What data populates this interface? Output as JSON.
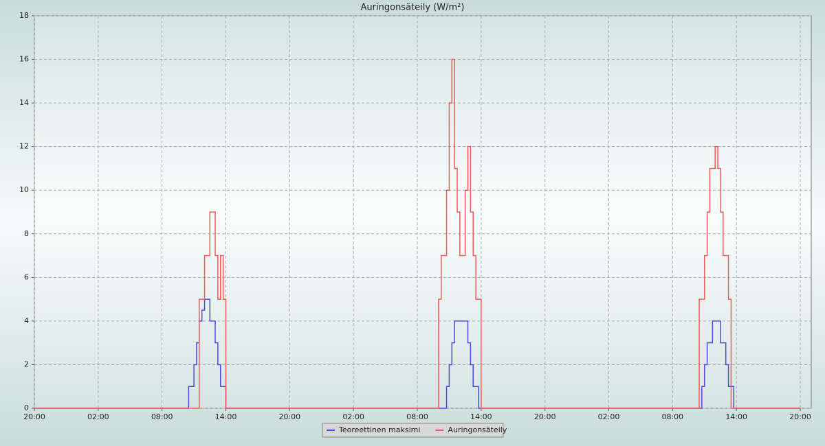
{
  "chart_data": {
    "type": "step",
    "title": "Auringonsäteily (W/m²)",
    "x": [
      0,
      14,
      14.25,
      14.5,
      14.75,
      15,
      15.25,
      15.5,
      15.75,
      16,
      16.25,
      16.5,
      16.75,
      17,
      17.25,
      17.5,
      17.75,
      18,
      18.25,
      37.75,
      38,
      38.25,
      38.5,
      38.75,
      39,
      39.25,
      39.5,
      39.75,
      40,
      40.25,
      40.5,
      40.75,
      41,
      41.25,
      41.5,
      41.75,
      42,
      42.25,
      62.25,
      62.5,
      62.75,
      63,
      63.25,
      63.5,
      63.75,
      64,
      64.25,
      64.5,
      64.75,
      65,
      65.25,
      65.5,
      65.75,
      66,
      72
    ],
    "series": [
      {
        "name": "Teoreettinen maksimi",
        "color": "#4b4bdc",
        "values": [
          0,
          0,
          0,
          1,
          1,
          2,
          3,
          4,
          4.5,
          5,
          5,
          4,
          4,
          3,
          2,
          1,
          1,
          0,
          0,
          0,
          0,
          0,
          0,
          1,
          2,
          3,
          4,
          4,
          4,
          4,
          4,
          3,
          2,
          1,
          1,
          0,
          0,
          0,
          0,
          0,
          1,
          2,
          3,
          3,
          4,
          4,
          4,
          3,
          3,
          2,
          1,
          1,
          0,
          0,
          0
        ]
      },
      {
        "name": "Auringonsäteily",
        "color": "#f05a5a",
        "values": [
          0,
          0,
          0,
          0,
          0,
          0,
          0,
          5,
          5,
          7,
          7,
          9,
          9,
          7,
          5,
          7,
          5,
          0,
          0,
          0,
          5,
          7,
          7,
          10,
          14,
          16,
          11,
          9,
          7,
          7,
          10,
          12,
          9,
          7,
          5,
          5,
          0,
          0,
          0,
          5,
          5,
          7,
          9,
          11,
          11,
          12,
          11,
          9,
          7,
          7,
          5,
          0,
          0,
          0,
          0
        ]
      }
    ],
    "xlim": [
      0,
      72
    ],
    "xticks": [
      {
        "value": 0,
        "label": "20:00"
      },
      {
        "value": 6,
        "label": "02:00"
      },
      {
        "value": 12,
        "label": "08:00"
      },
      {
        "value": 18,
        "label": "14:00"
      },
      {
        "value": 24,
        "label": "20:00"
      },
      {
        "value": 30,
        "label": "02:00"
      },
      {
        "value": 36,
        "label": "08:00"
      },
      {
        "value": 42,
        "label": "14:00"
      },
      {
        "value": 48,
        "label": "20:00"
      },
      {
        "value": 54,
        "label": "02:00"
      },
      {
        "value": 60,
        "label": "08:00"
      },
      {
        "value": 66,
        "label": "14:00"
      },
      {
        "value": 72,
        "label": "20:00"
      }
    ],
    "ylim": [
      0,
      18
    ],
    "yticks": [
      0,
      2,
      4,
      6,
      8,
      10,
      12,
      14,
      16,
      18
    ],
    "grid": true,
    "legend": "bottom"
  }
}
